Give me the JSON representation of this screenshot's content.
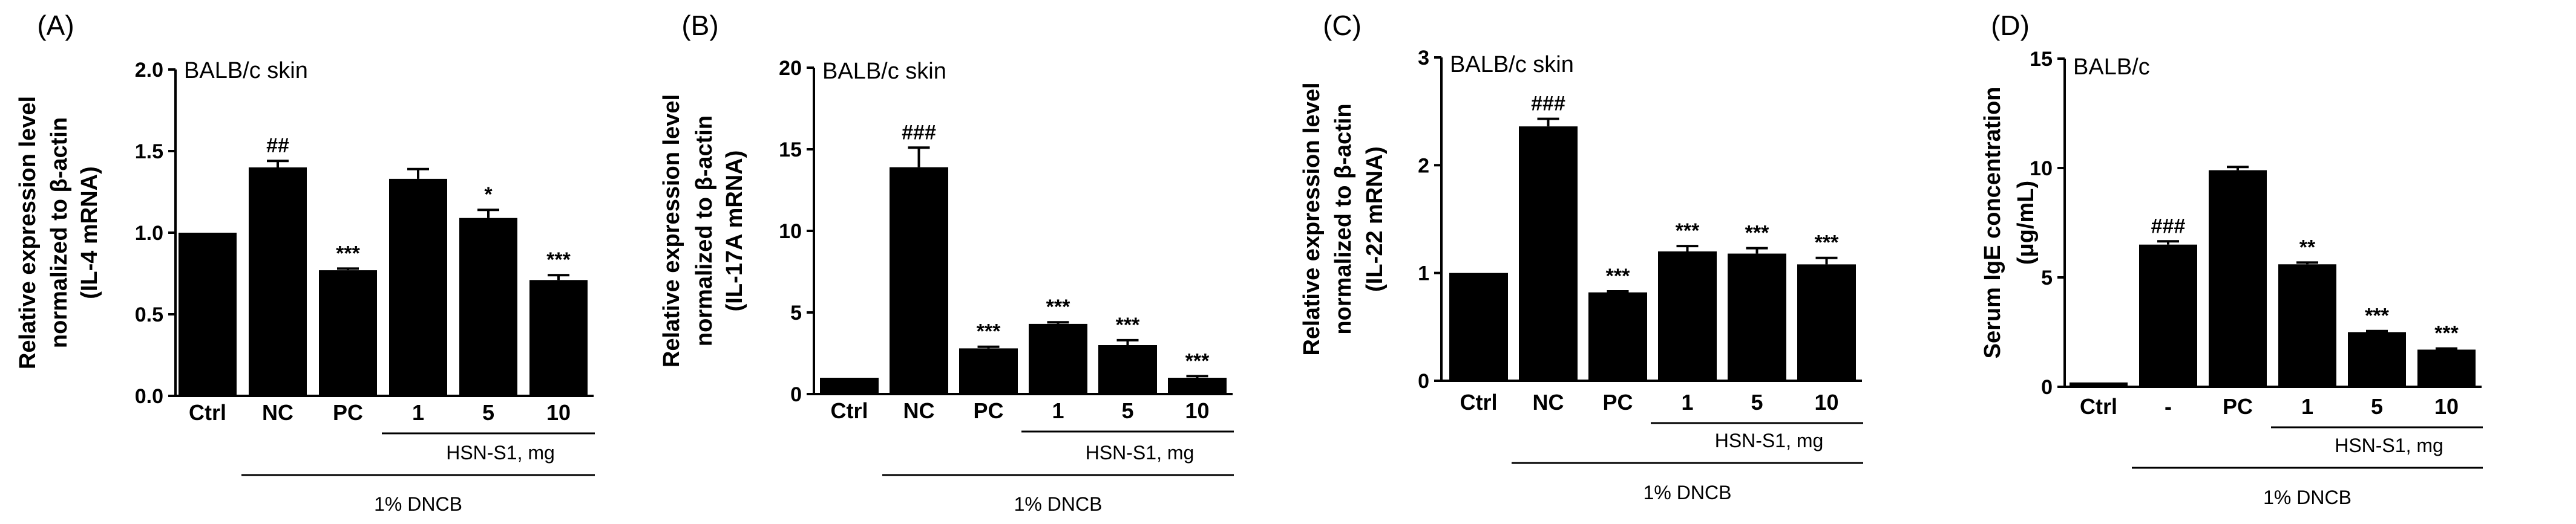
{
  "figure": {
    "panel_count": 4
  },
  "chart_data": [
    {
      "type": "bar",
      "panel": "(A)",
      "title": "BALB/c skin",
      "ylabel": [
        "Relative expression level",
        "normalized to β-actin",
        "(IL-4 mRNA)"
      ],
      "ylim": [
        0,
        2.0
      ],
      "yticks": [
        "0.0",
        "0.5",
        "1.0",
        "1.5",
        "2.0"
      ],
      "categories": [
        "Ctrl",
        "NC",
        "PC",
        "1",
        "5",
        "10"
      ],
      "values": [
        1.0,
        1.4,
        0.77,
        1.33,
        1.09,
        0.71
      ],
      "errors": [
        0.0,
        0.04,
        0.01,
        0.06,
        0.05,
        0.03
      ],
      "significance": [
        "",
        "##",
        "***",
        "",
        "*",
        "***"
      ],
      "group_label": "HSN-S1, mg",
      "treatment_label": "1% DNCB"
    },
    {
      "type": "bar",
      "panel": "(B)",
      "title": "BALB/c skin",
      "ylabel": [
        "Relative expression level",
        "normalized to β-actin",
        "(IL-17A mRNA)"
      ],
      "ylim": [
        0,
        20
      ],
      "yticks": [
        "0",
        "5",
        "10",
        "15",
        "20"
      ],
      "categories": [
        "Ctrl",
        "NC",
        "PC",
        "1",
        "5",
        "10"
      ],
      "values": [
        1.0,
        13.9,
        2.8,
        4.3,
        3.0,
        1.0
      ],
      "errors": [
        0.0,
        1.2,
        0.1,
        0.1,
        0.3,
        0.1
      ],
      "significance": [
        "",
        "###",
        "***",
        "***",
        "***",
        "***"
      ],
      "group_label": "HSN-S1, mg",
      "treatment_label": "1% DNCB"
    },
    {
      "type": "bar",
      "panel": "(C)",
      "title": "BALB/c skin",
      "ylabel": [
        "Relative expression level",
        "normalized to β-actin",
        "(IL-22 mRNA)"
      ],
      "ylim": [
        0,
        3
      ],
      "yticks": [
        "0",
        "1",
        "2",
        "3"
      ],
      "categories": [
        "Ctrl",
        "NC",
        "PC",
        "1",
        "5",
        "10"
      ],
      "values": [
        1.0,
        2.36,
        0.82,
        1.2,
        1.18,
        1.08
      ],
      "errors": [
        0.0,
        0.07,
        0.01,
        0.05,
        0.05,
        0.06
      ],
      "significance": [
        "",
        "###",
        "***",
        "***",
        "***",
        "***"
      ],
      "group_label": "HSN-S1, mg",
      "treatment_label": "1% DNCB"
    },
    {
      "type": "bar",
      "panel": "(D)",
      "title": "BALB/c",
      "ylabel": [
        "Serum IgE concentration",
        "(μg/mL)"
      ],
      "ylim": [
        0,
        15
      ],
      "yticks": [
        "0",
        "5",
        "10",
        "15"
      ],
      "categories": [
        "Ctrl",
        "-",
        "PC",
        "1",
        "5",
        "10"
      ],
      "values": [
        0.2,
        6.5,
        9.9,
        5.6,
        2.5,
        1.7
      ],
      "errors": [
        0.0,
        0.15,
        0.15,
        0.08,
        0.05,
        0.05
      ],
      "significance": [
        "",
        "###",
        "",
        "**",
        "***",
        "***"
      ],
      "group_label": "HSN-S1, mg",
      "treatment_label": "1%  DNCB"
    }
  ]
}
